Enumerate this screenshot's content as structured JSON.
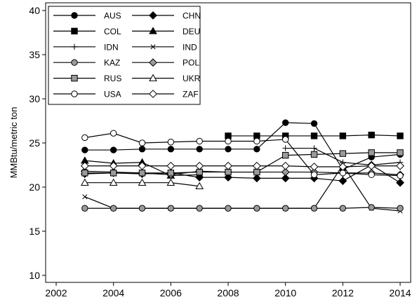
{
  "chart_data": {
    "type": "line",
    "title": "",
    "xlabel": "",
    "ylabel": "MMBtu/metric ton",
    "xlim": [
      2002,
      2014
    ],
    "ylim": [
      10,
      40
    ],
    "xticks": [
      2002,
      2004,
      2006,
      2008,
      2010,
      2012,
      2014
    ],
    "yticks": [
      10,
      15,
      20,
      25,
      30,
      35,
      40
    ],
    "grid": false,
    "legend": {
      "placement": "top-left",
      "columns": 2
    },
    "x": [
      2003,
      2004,
      2005,
      2006,
      2007,
      2008,
      2009,
      2010,
      2011,
      2012,
      2013,
      2014
    ],
    "series": [
      {
        "name": "AUS",
        "marker": "circle-filled",
        "values": [
          24.2,
          24.2,
          24.3,
          24.3,
          24.3,
          24.3,
          24.3,
          27.3,
          27.2,
          22.0,
          23.4,
          23.7
        ]
      },
      {
        "name": "CHN",
        "marker": "diamond-filled",
        "values": [
          21.5,
          21.6,
          21.5,
          21.6,
          21.1,
          21.1,
          21.0,
          21.0,
          21.0,
          20.7,
          22.5,
          20.5
        ]
      },
      {
        "name": "COL",
        "marker": "square-filled",
        "values": [
          null,
          null,
          null,
          null,
          null,
          25.8,
          25.8,
          25.8,
          25.8,
          25.8,
          25.9,
          25.8
        ]
      },
      {
        "name": "DEU",
        "marker": "triangle-filled",
        "values": [
          23.0,
          22.7,
          22.8,
          21.3,
          21.4,
          null,
          null,
          null,
          null,
          null,
          null,
          null
        ]
      },
      {
        "name": "IDN",
        "marker": "plus",
        "values": [
          null,
          null,
          null,
          null,
          null,
          null,
          null,
          24.4,
          24.4,
          22.8,
          22.5,
          22.8
        ]
      },
      {
        "name": "IND",
        "marker": "x",
        "values": [
          18.9,
          17.6,
          17.6,
          17.6,
          17.6,
          17.6,
          17.6,
          17.6,
          17.6,
          22.5,
          17.6,
          17.3
        ]
      },
      {
        "name": "KAZ",
        "marker": "circle-gray",
        "values": [
          17.6,
          17.6,
          17.6,
          17.6,
          17.6,
          17.6,
          17.6,
          17.6,
          17.6,
          17.6,
          17.7,
          17.6
        ]
      },
      {
        "name": "POL",
        "marker": "diamond-gray",
        "values": [
          21.8,
          21.7,
          21.6,
          21.4,
          21.8,
          21.7,
          21.7,
          21.7,
          21.7,
          21.6,
          21.6,
          21.4
        ]
      },
      {
        "name": "RUS",
        "marker": "square-gray",
        "values": [
          21.6,
          21.6,
          21.6,
          21.6,
          21.7,
          21.7,
          21.7,
          23.6,
          23.7,
          23.8,
          23.9,
          23.9
        ]
      },
      {
        "name": "UKR",
        "marker": "triangle-hollow",
        "values": [
          20.5,
          20.5,
          20.5,
          20.5,
          20.1,
          null,
          null,
          null,
          null,
          null,
          null,
          null
        ]
      },
      {
        "name": "USA",
        "marker": "circle-hollow",
        "values": [
          25.6,
          26.1,
          25.0,
          25.1,
          25.2,
          25.2,
          25.2,
          25.4,
          21.4,
          21.6,
          21.4,
          21.3
        ]
      },
      {
        "name": "ZAF",
        "marker": "diamond-hollow",
        "values": [
          22.4,
          22.4,
          22.4,
          22.4,
          22.4,
          22.4,
          22.4,
          22.4,
          22.3,
          22.3,
          22.4,
          22.4
        ]
      }
    ]
  }
}
